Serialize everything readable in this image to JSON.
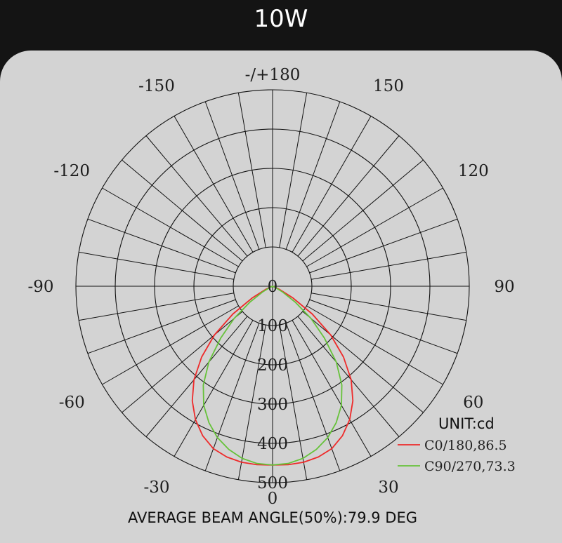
{
  "header": {
    "title": "10W"
  },
  "chart_data": {
    "type": "polar",
    "angle_labels": [
      {
        "text": "-/+180",
        "angle": 180
      },
      {
        "text": "150",
        "angle": 150
      },
      {
        "text": "-150",
        "angle": -150
      },
      {
        "text": "120",
        "angle": 120
      },
      {
        "text": "-120",
        "angle": -120
      },
      {
        "text": "90",
        "angle": 90
      },
      {
        "text": "-90",
        "angle": -90
      },
      {
        "text": "60",
        "angle": 60
      },
      {
        "text": "-60",
        "angle": -60
      },
      {
        "text": "30",
        "angle": 30
      },
      {
        "text": "-30",
        "angle": -30
      },
      {
        "text": "0",
        "angle": 0
      }
    ],
    "radial_ticks": [
      0,
      100,
      200,
      300,
      400,
      500
    ],
    "radial_max": 500,
    "angle_step_deg": 10,
    "unit_label": "UNIT:cd",
    "series": [
      {
        "name": "C0/180,86.5",
        "color": "#ee2a2a",
        "points": [
          [
            0,
            455
          ],
          [
            5,
            456
          ],
          [
            10,
            455
          ],
          [
            15,
            450
          ],
          [
            20,
            440
          ],
          [
            25,
            420
          ],
          [
            30,
            392
          ],
          [
            35,
            356
          ],
          [
            40,
            311
          ],
          [
            45,
            255
          ],
          [
            50,
            193
          ],
          [
            55,
            123
          ],
          [
            60,
            60
          ],
          [
            65,
            20
          ],
          [
            70,
            5
          ],
          [
            75,
            0
          ]
        ]
      },
      {
        "name": "C90/270,73.3",
        "color": "#66c23a",
        "points": [
          [
            0,
            455
          ],
          [
            5,
            453
          ],
          [
            10,
            445
          ],
          [
            15,
            430
          ],
          [
            20,
            410
          ],
          [
            25,
            383
          ],
          [
            30,
            350
          ],
          [
            35,
            307
          ],
          [
            40,
            252
          ],
          [
            45,
            186
          ],
          [
            50,
            128
          ],
          [
            55,
            70
          ],
          [
            60,
            30
          ],
          [
            65,
            8
          ],
          [
            70,
            0
          ]
        ]
      }
    ]
  },
  "footer": {
    "beam_text": "AVERAGE BEAM ANGLE(50%):79.9 DEG"
  }
}
